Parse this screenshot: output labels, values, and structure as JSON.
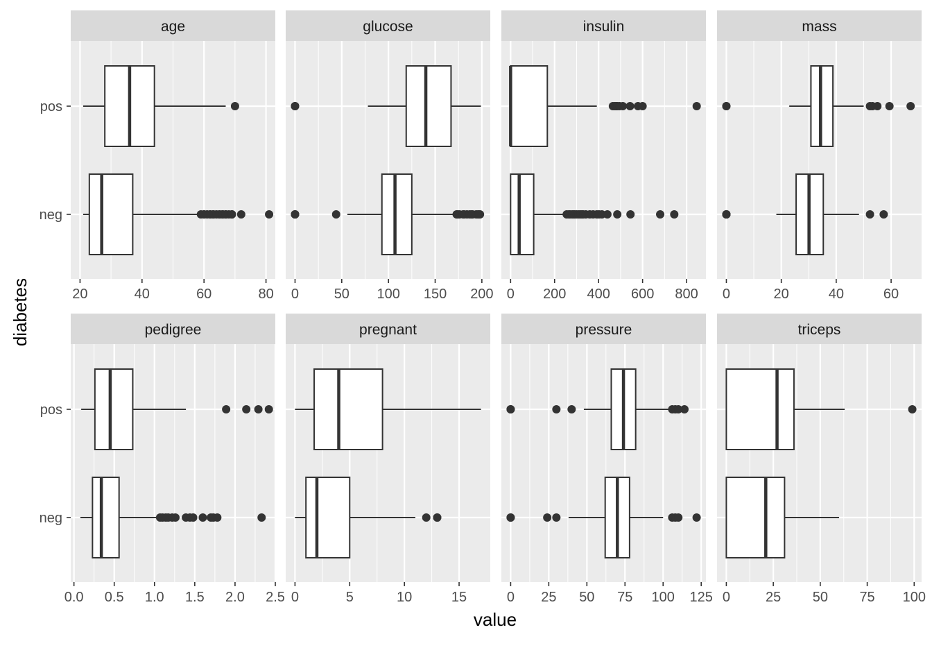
{
  "chart_data": {
    "type": "boxplot",
    "layout": "faceted 2x4, free x scales",
    "xlabel": "value",
    "ylabel": "diabetes",
    "categories": [
      "pos",
      "neg"
    ],
    "colors": {
      "panel_bg": "#ebebeb",
      "strip_bg": "#d9d9d9",
      "gridline": "#ffffff",
      "box_fill": "#ffffff",
      "stroke": "#333333",
      "outlier": "#333333",
      "axis_text": "#4d4d4d",
      "strip_text": "#1a1a1a"
    },
    "facets": [
      {
        "name": "age",
        "xlim": [
          17.0,
          83.0
        ],
        "ticks": [
          20,
          40,
          60,
          80
        ],
        "tick_labels": [
          "20",
          "40",
          "60",
          "80"
        ],
        "boxes": {
          "pos": {
            "wlo": 21,
            "q1": 28,
            "med": 36,
            "q3": 44,
            "whi": 67,
            "outliers": [
              70
            ]
          },
          "neg": {
            "wlo": 21,
            "q1": 23,
            "med": 27,
            "q3": 37,
            "whi": 58,
            "outliers": [
              59,
              60,
              60,
              61,
              62,
              62,
              63,
              63,
              64,
              65,
              65,
              66,
              66,
              67,
              67,
              68,
              69,
              69,
              72,
              81
            ]
          }
        }
      },
      {
        "name": "glucose",
        "xlim": [
          -10.0,
          209.0
        ],
        "ticks": [
          0,
          50,
          100,
          150,
          200
        ],
        "tick_labels": [
          "0",
          "50",
          "100",
          "150",
          "200"
        ],
        "boxes": {
          "pos": {
            "wlo": 78,
            "q1": 119,
            "med": 140,
            "q3": 167,
            "whi": 199,
            "outliers": [
              0,
              0
            ]
          },
          "neg": {
            "wlo": 56,
            "q1": 93,
            "med": 107,
            "q3": 125,
            "whi": 172,
            "outliers": [
              0,
              0,
              0,
              44,
              173,
              174,
              176,
              180,
              181,
              184,
              187,
              189,
              190,
              194,
              196,
              197,
              198
            ]
          }
        }
      },
      {
        "name": "insulin",
        "xlim": [
          -42.0,
          888.0
        ],
        "ticks": [
          0,
          200,
          400,
          600,
          800
        ],
        "tick_labels": [
          "0",
          "200",
          "400",
          "600",
          "800"
        ],
        "boxes": {
          "pos": {
            "wlo": 0,
            "q1": 0,
            "med": 0,
            "q3": 167,
            "whi": 392,
            "outliers": [
              465,
              474,
              480,
              485,
              495,
              510,
              543,
              579,
              600,
              846
            ]
          },
          "neg": {
            "wlo": 0,
            "q1": 0,
            "med": 39,
            "q3": 105,
            "whi": 250,
            "outliers": [
              255,
              265,
              270,
              280,
              285,
              291,
              300,
              310,
              318,
              325,
              330,
              342,
              360,
              375,
              392,
              402,
              415,
              440,
              485,
              545,
              680,
              744
            ]
          }
        }
      },
      {
        "name": "mass",
        "xlim": [
          -3.4,
          71.1
        ],
        "ticks": [
          0,
          20,
          40,
          60
        ],
        "tick_labels": [
          "0",
          "20",
          "40",
          "60"
        ],
        "boxes": {
          "pos": {
            "wlo": 22.9,
            "q1": 30.8,
            "med": 34.3,
            "q3": 38.8,
            "whi": 50.0,
            "outliers": [
              0,
              0,
              52.3,
              53.2,
              55.0,
              59.4,
              67.1
            ]
          },
          "neg": {
            "wlo": 18.2,
            "q1": 25.4,
            "med": 30.1,
            "q3": 35.3,
            "whi": 48.3,
            "outliers": [
              0,
              0,
              0,
              0,
              52.3,
              57.3
            ]
          }
        }
      },
      {
        "name": "pedigree",
        "xlim": [
          -0.04,
          2.5
        ],
        "ticks": [
          0.0,
          0.5,
          1.0,
          1.5,
          2.0,
          2.5
        ],
        "tick_labels": [
          "0.0",
          "0.5",
          "1.0",
          "1.5",
          "2.0",
          "2.5"
        ],
        "boxes": {
          "pos": {
            "wlo": 0.09,
            "q1": 0.26,
            "med": 0.45,
            "q3": 0.73,
            "whi": 1.39,
            "outliers": [
              1.89,
              2.14,
              2.29,
              2.42
            ]
          },
          "neg": {
            "wlo": 0.08,
            "q1": 0.23,
            "med": 0.34,
            "q3": 0.56,
            "whi": 1.02,
            "outliers": [
              1.07,
              1.1,
              1.14,
              1.17,
              1.22,
              1.26,
              1.39,
              1.44,
              1.48,
              1.6,
              1.7,
              1.73,
              1.78,
              2.33
            ]
          }
        }
      },
      {
        "name": "pregnant",
        "xlim": [
          -0.85,
          17.85
        ],
        "ticks": [
          0,
          5,
          10,
          15
        ],
        "tick_labels": [
          "0",
          "5",
          "10",
          "15"
        ],
        "boxes": {
          "pos": {
            "wlo": 0,
            "q1": 1.75,
            "med": 4,
            "q3": 8,
            "whi": 17,
            "outliers": []
          },
          "neg": {
            "wlo": 0,
            "q1": 1,
            "med": 2,
            "q3": 5,
            "whi": 11,
            "outliers": [
              12,
              13,
              13
            ]
          }
        }
      },
      {
        "name": "pressure",
        "xlim": [
          -6.1,
          128.1
        ],
        "ticks": [
          0,
          25,
          50,
          75,
          100,
          125
        ],
        "tick_labels": [
          "0",
          "25",
          "50",
          "75",
          "100",
          "125"
        ],
        "boxes": {
          "pos": {
            "wlo": 48,
            "q1": 66,
            "med": 74,
            "q3": 82,
            "whi": 104,
            "outliers": [
              0,
              0,
              30,
              40,
              106,
              108,
              110,
              114
            ]
          },
          "neg": {
            "wlo": 38,
            "q1": 62,
            "med": 70,
            "q3": 78,
            "whi": 100,
            "outliers": [
              0,
              0,
              24,
              30,
              106,
              108,
              110,
              122
            ]
          }
        }
      },
      {
        "name": "triceps",
        "xlim": [
          -4.95,
          103.95
        ],
        "ticks": [
          0,
          25,
          50,
          75,
          100
        ],
        "tick_labels": [
          "0",
          "25",
          "50",
          "75",
          "100"
        ],
        "boxes": {
          "pos": {
            "wlo": 0,
            "q1": 0,
            "med": 27,
            "q3": 36,
            "whi": 63,
            "outliers": [
              99
            ]
          },
          "neg": {
            "wlo": 0,
            "q1": 0,
            "med": 21,
            "q3": 31,
            "whi": 60,
            "outliers": []
          }
        }
      }
    ]
  }
}
